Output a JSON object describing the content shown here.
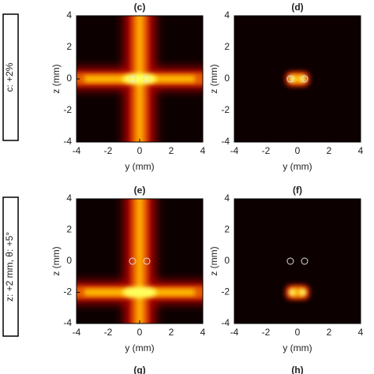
{
  "chart_data": [
    {
      "type": "heatmap",
      "title": "(c)",
      "xlabel": "y (mm)",
      "ylabel": "z (mm)",
      "xlim": [
        -4,
        4
      ],
      "ylim": [
        -4,
        4
      ],
      "xticks": [
        -4,
        -2,
        0,
        2,
        4
      ],
      "yticks": [
        -4,
        -2,
        0,
        2,
        4
      ]
    },
    {
      "type": "heatmap",
      "title": "(d)",
      "xlabel": "y (mm)",
      "ylabel": "z (mm)",
      "xlim": [
        -4,
        4
      ],
      "ylim": [
        -4,
        4
      ],
      "xticks": [
        -4,
        -2,
        0,
        2,
        4
      ],
      "yticks": [
        -4,
        -2,
        0,
        2,
        4
      ]
    },
    {
      "type": "heatmap",
      "title": "(e)",
      "xlabel": "y (mm)",
      "ylabel": "z (mm)",
      "xlim": [
        -4,
        4
      ],
      "ylim": [
        -4,
        4
      ],
      "xticks": [
        -4,
        -2,
        0,
        2,
        4
      ],
      "yticks": [
        -4,
        -2,
        0,
        2,
        4
      ]
    },
    {
      "type": "heatmap",
      "title": "(f)",
      "xlabel": "y (mm)",
      "ylabel": "z (mm)",
      "xlim": [
        -4,
        4
      ],
      "ylim": [
        -4,
        4
      ],
      "xticks": [
        -4,
        -2,
        0,
        2,
        4
      ],
      "yticks": [
        -4,
        -2,
        0,
        2,
        4
      ]
    }
  ],
  "row_labels": [
    "c: +2%",
    "z: +2 mm, θ: +5°"
  ],
  "next_titles": [
    "(g)",
    "(h)"
  ]
}
